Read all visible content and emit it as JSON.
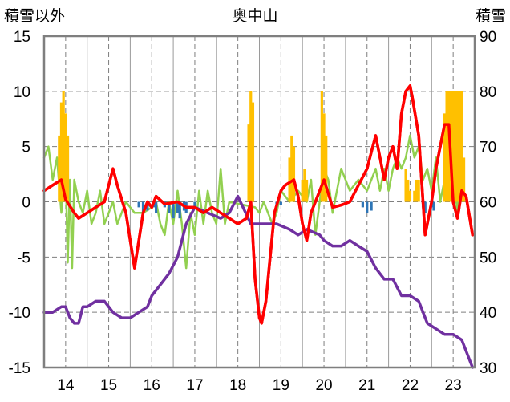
{
  "chart_data": {
    "type": "line",
    "title": "奥中山",
    "y_left_label": "積雪以外",
    "y_right_label": "積雪",
    "x_ticks": [
      "14",
      "15",
      "16",
      "17",
      "18",
      "19",
      "20",
      "21",
      "22",
      "23"
    ],
    "xlim": [
      13.5,
      23.5
    ],
    "ylim_left": [
      -15,
      15
    ],
    "y_left_ticks": [
      15,
      10,
      5,
      0,
      -5,
      -10,
      -15
    ],
    "ylim_right": [
      30,
      90
    ],
    "y_right_ticks": [
      90,
      80,
      70,
      60,
      50,
      40,
      30
    ],
    "grid": "dashed",
    "colors": {
      "red_line": "#ff0000",
      "green_line": "#92d050",
      "purple_line": "#7030a0",
      "orange_bars": "#ffc000",
      "blue_bars": "#2e75b6"
    },
    "series": [
      {
        "axis": "left",
        "style": "line",
        "color": "#ff0000",
        "x": [
          13.5,
          13.7,
          13.9,
          14.0,
          14.2,
          14.3,
          14.5,
          14.7,
          14.9,
          15.1,
          15.2,
          15.4,
          15.6,
          15.8,
          15.9,
          16.0,
          16.1,
          16.3,
          16.6,
          16.8,
          17.0,
          17.2,
          17.4,
          17.6,
          17.8,
          18.0,
          18.2,
          18.3,
          18.4,
          18.5,
          18.55,
          18.65,
          18.75,
          18.85,
          19.0,
          19.1,
          19.3,
          19.4,
          19.5,
          19.6,
          19.7,
          19.8,
          20.0,
          20.2,
          20.4,
          20.6,
          20.8,
          21.0,
          21.1,
          21.2,
          21.3,
          21.4,
          21.5,
          21.6,
          21.7,
          21.8,
          21.9,
          22.0,
          22.05,
          22.2,
          22.35,
          22.5,
          22.6,
          22.7,
          22.8,
          22.9,
          23.0,
          23.1,
          23.2,
          23.3,
          23.45
        ],
        "y": [
          1,
          1.5,
          2,
          0.2,
          -1,
          -1.5,
          -1,
          -0.5,
          0,
          3,
          1.5,
          -1,
          -6,
          -1,
          0,
          -0.5,
          0.5,
          -0.2,
          0,
          -0.5,
          -0.5,
          -1,
          -0.5,
          -1,
          -1.5,
          -2,
          -1.5,
          0,
          -7,
          -10.5,
          -11,
          -9,
          -5,
          -1,
          1,
          1.5,
          2,
          0.5,
          -2,
          -3.5,
          -1,
          0,
          2,
          -0.5,
          -0.3,
          0,
          1.5,
          3,
          4.5,
          6,
          4,
          2,
          4,
          5,
          3,
          8,
          10,
          10.5,
          9.5,
          6,
          -3,
          0,
          3,
          5,
          7,
          7,
          0,
          -1.5,
          1,
          0.5,
          -3
        ]
      },
      {
        "axis": "left",
        "style": "line",
        "color": "#92d050",
        "x": [
          13.5,
          13.6,
          13.7,
          13.8,
          13.9,
          14.0,
          14.05,
          14.1,
          14.15,
          14.2,
          14.3,
          14.4,
          14.5,
          14.6,
          14.7,
          14.8,
          14.9,
          15.0,
          15.1,
          15.2,
          15.3,
          15.4,
          15.6,
          15.8,
          16.0,
          16.1,
          16.2,
          16.3,
          16.4,
          16.5,
          16.6,
          16.7,
          16.8,
          16.9,
          17.0,
          17.1,
          17.2,
          17.3,
          17.4,
          17.5,
          17.6,
          17.7,
          17.8,
          18.4,
          18.5,
          18.6,
          18.7,
          18.8,
          18.9,
          19.0,
          19.2,
          19.4,
          19.6,
          19.7,
          19.8,
          19.9,
          20.0,
          20.1,
          20.2,
          20.4,
          20.6,
          20.8,
          21.0,
          21.2,
          21.3,
          21.4,
          21.5,
          21.6,
          21.7,
          21.8,
          21.9,
          22.0,
          22.1,
          22.2,
          22.3,
          22.4,
          22.5,
          22.6,
          22.7,
          22.8,
          22.9,
          23.0,
          23.1,
          23.2
        ],
        "y": [
          4,
          5,
          2,
          4,
          -1,
          3,
          -5.5,
          2,
          -6,
          2,
          0,
          -1,
          1,
          -2,
          -1,
          1,
          -2,
          -1,
          0,
          -2,
          -1,
          0,
          -1,
          -1,
          -0.5,
          0,
          -2,
          -3,
          0,
          -2,
          1,
          -2,
          -6,
          -1,
          -3,
          1,
          -2,
          1,
          -1,
          -2,
          3,
          -2,
          0,
          -0.5,
          -1,
          0,
          -1,
          -2,
          -1,
          1,
          0,
          1,
          0,
          2,
          -3,
          0,
          3,
          2,
          -1,
          3,
          1,
          2,
          1,
          3,
          1,
          3,
          1,
          3,
          4,
          3,
          4,
          6,
          4,
          5,
          2,
          3,
          1,
          4,
          0,
          2,
          1,
          3,
          -1,
          3
        ]
      },
      {
        "axis": "right",
        "style": "line",
        "color": "#7030a0",
        "x": [
          13.5,
          13.7,
          13.9,
          14.0,
          14.1,
          14.2,
          14.3,
          14.4,
          14.5,
          14.7,
          14.9,
          15.1,
          15.3,
          15.5,
          15.7,
          15.9,
          16.0,
          16.2,
          16.4,
          16.6,
          16.8,
          17.0,
          17.3,
          17.6,
          17.8,
          18.0,
          18.3,
          18.5,
          18.7,
          18.9,
          19.2,
          19.4,
          19.6,
          19.9,
          20.0,
          20.2,
          20.4,
          20.6,
          20.8,
          21.0,
          21.2,
          21.4,
          21.6,
          21.8,
          22.0,
          22.2,
          22.4,
          22.6,
          22.8,
          23.0,
          23.2,
          23.4,
          23.45
        ],
        "y": [
          40,
          40,
          41,
          41,
          39,
          38,
          38,
          41,
          41,
          42,
          42,
          40,
          39,
          39,
          40,
          41,
          43,
          45,
          47,
          50,
          56,
          59,
          58,
          57,
          58,
          61,
          56,
          56,
          56,
          56,
          55,
          54,
          55,
          54,
          53,
          52,
          52,
          53,
          52,
          51,
          48,
          46,
          46,
          43,
          43,
          42,
          38,
          37,
          36,
          36,
          35,
          31,
          30
        ]
      },
      {
        "axis": "left",
        "style": "bars",
        "color": "#ffc000",
        "x": [
          13.85,
          13.9,
          13.95,
          14.0,
          14.05,
          18.25,
          18.3,
          18.35,
          19.2,
          19.25,
          19.3,
          19.5,
          19.55,
          19.6,
          19.95,
          20.0,
          20.05,
          21.9,
          21.95,
          22.0,
          22.1,
          22.15,
          22.2,
          22.8,
          22.85,
          22.9,
          22.95,
          23.0,
          23.05,
          23.1,
          23.15,
          23.2,
          23.25
        ],
        "y": [
          6,
          9,
          10,
          8,
          6,
          7,
          10,
          9,
          4,
          6,
          5,
          2,
          3,
          2,
          10,
          8,
          6,
          3,
          2,
          1,
          1,
          2,
          2,
          8,
          10,
          10,
          10,
          10,
          10,
          10,
          10,
          10,
          4
        ]
      },
      {
        "axis": "left",
        "style": "bars",
        "color": "#2e75b6",
        "x": [
          15.7,
          15.8,
          15.9,
          16.05,
          16.1,
          16.3,
          16.4,
          16.5,
          16.6,
          16.65,
          16.75,
          16.8,
          17.0,
          18.9,
          19.0,
          20.9,
          21.0,
          21.1,
          22.3,
          22.35,
          22.5,
          22.55
        ],
        "y": [
          -0.5,
          -1,
          -0.8,
          -0.5,
          -1,
          -0.5,
          -1,
          -1.5,
          -1,
          -1.5,
          -0.8,
          -1,
          -0.5,
          -0.5,
          -0.3,
          -0.5,
          -1,
          -0.8,
          -0.5,
          -1,
          -0.5,
          -0.8
        ]
      }
    ]
  }
}
